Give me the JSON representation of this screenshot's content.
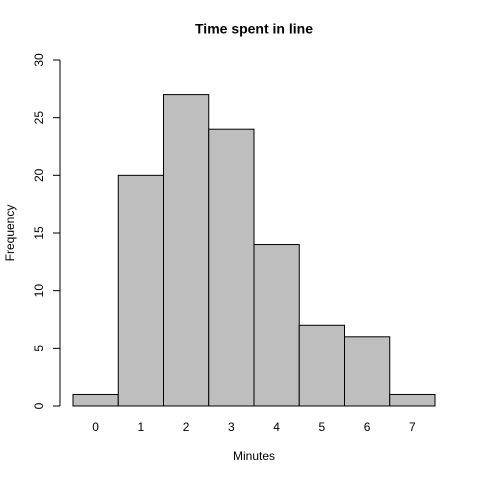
{
  "chart_data": {
    "type": "bar",
    "title": "Time spent in line",
    "x_label": "Minutes",
    "y_label": "Frequency",
    "categories": [
      "0",
      "1",
      "2",
      "3",
      "4",
      "5",
      "6",
      "7"
    ],
    "values": [
      1,
      20,
      27,
      24,
      14,
      7,
      6,
      1
    ],
    "color": "#bebebe",
    "ylim": [
      0,
      30
    ],
    "yticks": [
      0,
      5,
      10,
      15,
      20,
      25,
      30
    ]
  }
}
